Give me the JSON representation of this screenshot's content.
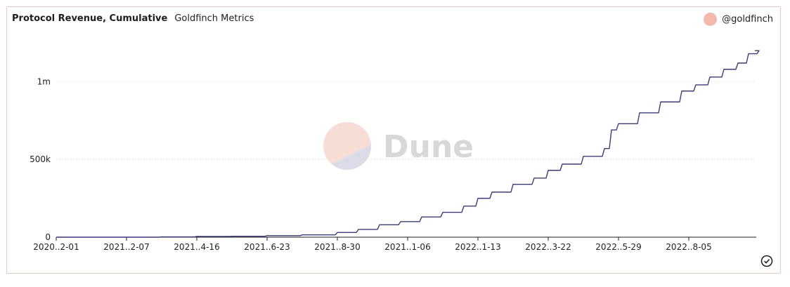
{
  "header": {
    "title": "Protocol Revenue, Cumulative",
    "subtitle": "Goldfinch Metrics"
  },
  "legend": {
    "label": "@goldfinch",
    "color": "#f4b9ad"
  },
  "watermark": {
    "text": "Dune",
    "top_color": "#f6ddd6",
    "bottom_color": "#dcdce9"
  },
  "colors": {
    "line": "#3d3b76",
    "grid": "#e8e8e8",
    "axis": "#1e1e1e",
    "border": "#e9c9bd"
  },
  "icons": {
    "status": "check-circle-icon"
  },
  "chart_data": {
    "type": "line",
    "title": "Protocol Revenue, Cumulative",
    "subtitle": "Goldfinch Metrics",
    "xlabel": "",
    "ylabel": "",
    "ylim": [
      0,
      1300000
    ],
    "yticks": [
      {
        "value": 0,
        "label": "0"
      },
      {
        "value": 500000,
        "label": "500k"
      },
      {
        "value": 1000000,
        "label": "1m"
      }
    ],
    "xticks": [
      "2020..2-01",
      "2021..2-07",
      "2021..4-16",
      "2021..6-23",
      "2021..8-30",
      "2021..1-06",
      "2022..1-13",
      "2022..3-22",
      "2022..5-29",
      "2022..8-05"
    ],
    "grid": true,
    "legend_position": "top-right",
    "series": [
      {
        "name": "@goldfinch",
        "x_index": [
          0,
          0.5,
          1.0,
          1.5,
          2.0,
          2.5,
          3.0,
          3.5,
          4.0,
          4.3,
          4.6,
          4.9,
          5.2,
          5.5,
          5.8,
          6.0,
          6.2,
          6.5,
          6.8,
          7.0,
          7.2,
          7.5,
          7.8,
          7.9,
          8.0,
          8.3,
          8.6,
          8.9,
          9.1,
          9.3,
          9.5,
          9.7,
          9.85,
          10.0
        ],
        "values": [
          0,
          0,
          0,
          2000,
          5000,
          6000,
          10000,
          15000,
          30000,
          50000,
          80000,
          100000,
          130000,
          160000,
          200000,
          250000,
          290000,
          340000,
          380000,
          430000,
          470000,
          520000,
          570000,
          690000,
          730000,
          800000,
          870000,
          940000,
          980000,
          1030000,
          1080000,
          1120000,
          1180000,
          1200000
        ]
      }
    ]
  }
}
